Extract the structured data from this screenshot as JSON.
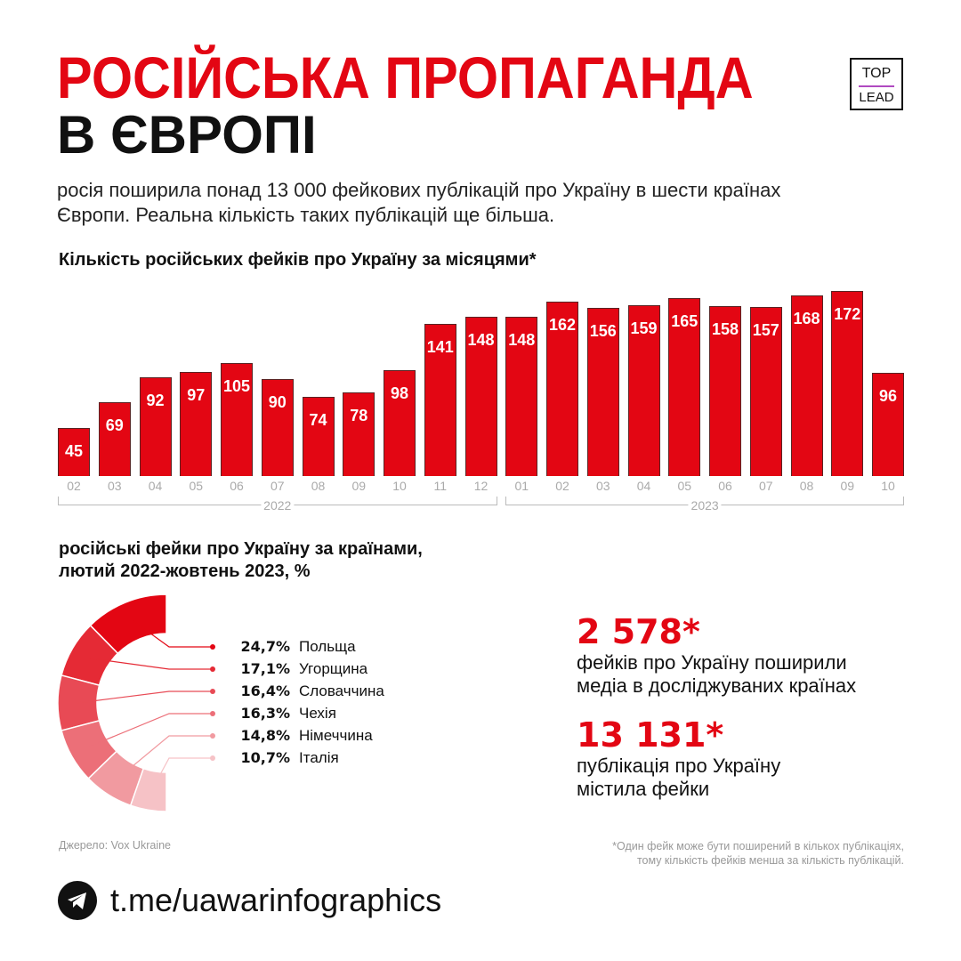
{
  "title": {
    "line1": "РОСІЙСЬКА ПРОПАГАНДА",
    "line2": "В ЄВРОПІ"
  },
  "logo": {
    "top": "TOP",
    "bottom": "LEAD"
  },
  "subtitle": "росія поширила понад 13 000 фейкових публікацій про Україну в шести країнах Європи. Реальна кількість таких публікацій ще більша.",
  "colors": {
    "accent": "#e30613"
  },
  "chart_data": [
    {
      "type": "bar",
      "title": "Кількість російських фейків про Україну за місяцями*",
      "categories": [
        "02",
        "03",
        "04",
        "05",
        "06",
        "07",
        "08",
        "09",
        "10",
        "11",
        "12",
        "01",
        "02",
        "03",
        "04",
        "05",
        "06",
        "07",
        "08",
        "09",
        "10"
      ],
      "values": [
        45,
        69,
        92,
        97,
        105,
        90,
        74,
        78,
        98,
        141,
        148,
        148,
        162,
        156,
        159,
        165,
        158,
        157,
        168,
        172,
        96
      ],
      "groups": [
        {
          "label": "2022",
          "from": 0,
          "to": 10
        },
        {
          "label": "2023",
          "from": 11,
          "to": 20
        }
      ],
      "ylim": [
        0,
        172
      ]
    },
    {
      "type": "pie",
      "title_line1": "російські фейки про Україну за країнами,",
      "title_line2": "лютий 2022-жовтень 2023, %",
      "slices": [
        {
          "label": "Польща",
          "value": 24.7,
          "text": "24,7%",
          "color": "#e30613"
        },
        {
          "label": "Угорщина",
          "value": 17.1,
          "text": "17,1%",
          "color": "#e52a35"
        },
        {
          "label": "Словаччина",
          "value": 16.4,
          "text": "16,4%",
          "color": "#e84a55"
        },
        {
          "label": "Чехія",
          "value": 16.3,
          "text": "16,3%",
          "color": "#ec6f78"
        },
        {
          "label": "Німеччина",
          "value": 14.8,
          "text": "14,8%",
          "color": "#f19aa0"
        },
        {
          "label": "Італія",
          "value": 10.7,
          "text": "10,7%",
          "color": "#f6c2c6"
        }
      ]
    }
  ],
  "stats": [
    {
      "value": "2 578*",
      "desc1": "фейків про Україну поширили",
      "desc2": "медіа в досліджуваних країнах"
    },
    {
      "value": "13 131*",
      "desc1": "публікація про Україну",
      "desc2": "містила фейки"
    }
  ],
  "source": "Джерело: Vox Ukraine",
  "footnote1": "*Один фейк може бути поширений в кількох публікаціях,",
  "footnote2": "тому кількість фейків менша за кількість публікацій.",
  "channel": "t.me/uawarinfographics"
}
